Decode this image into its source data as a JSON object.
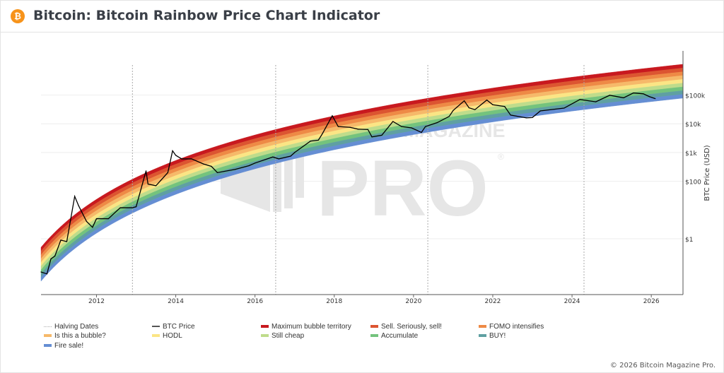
{
  "header": {
    "title": "Bitcoin: Bitcoin Rainbow Price Chart Indicator",
    "icon": "bitcoin-icon",
    "icon_glyph": "₿"
  },
  "watermark": {
    "line1": "BITCOIN MAGAZINE",
    "line2": "PRO",
    "mark": "®"
  },
  "copyright": "© 2026 Bitcoin Magazine Pro.",
  "chart_data": {
    "type": "line",
    "title": "",
    "xlabel": "",
    "ylabel": "BTC Price (USD)",
    "y_scale": "log",
    "xlim": [
      2010.6,
      2026.8
    ],
    "ylim": [
      0.011,
      3500000
    ],
    "grid": "horizontal",
    "x_ticks": [
      "2012",
      "2014",
      "2016",
      "2018",
      "2020",
      "2022",
      "2024",
      "2026"
    ],
    "y_ticks": [
      {
        "value": 1,
        "label": "$1"
      },
      {
        "value": 100,
        "label": "$100"
      },
      {
        "value": 1000,
        "label": "$1k"
      },
      {
        "value": 10000,
        "label": "$10k"
      },
      {
        "value": 100000,
        "label": "$100k"
      }
    ],
    "halving_dates": [
      "2012-11-28",
      "2016-07-09",
      "2020-05-11",
      "2024-04-20"
    ],
    "bands": [
      {
        "name": "Maximum bubble territory",
        "color": "#c8191f"
      },
      {
        "name": "Sell. Seriously, sell!",
        "color": "#dc5531"
      },
      {
        "name": "FOMO intensifies",
        "color": "#ee8a46"
      },
      {
        "name": "Is this a bubble?",
        "color": "#f6b96a"
      },
      {
        "name": "HODL",
        "color": "#fbe585"
      },
      {
        "name": "Still cheap",
        "color": "#bfdc8b"
      },
      {
        "name": "Accumulate",
        "color": "#74c37d"
      },
      {
        "name": "BUY!",
        "color": "#5fa0a2"
      },
      {
        "name": "Fire sale!",
        "color": "#658ed3"
      }
    ],
    "series": [
      {
        "name": "BTC Price",
        "color": "#000000",
        "x": [
          2010.6,
          2010.75,
          2010.85,
          2010.95,
          2011.1,
          2011.25,
          2011.45,
          2011.55,
          2011.75,
          2011.9,
          2012.0,
          2012.3,
          2012.6,
          2012.9,
          2013.0,
          2013.25,
          2013.3,
          2013.5,
          2013.8,
          2013.92,
          2014.0,
          2014.15,
          2014.4,
          2014.7,
          2014.9,
          2015.05,
          2015.5,
          2015.85,
          2016.0,
          2016.45,
          2016.6,
          2016.9,
          2017.0,
          2017.4,
          2017.6,
          2017.7,
          2017.95,
          2018.1,
          2018.4,
          2018.6,
          2018.85,
          2018.95,
          2019.2,
          2019.48,
          2019.7,
          2019.95,
          2020.2,
          2020.3,
          2020.6,
          2020.9,
          2021.0,
          2021.28,
          2021.4,
          2021.55,
          2021.85,
          2022.0,
          2022.3,
          2022.45,
          2022.85,
          2023.0,
          2023.2,
          2023.8,
          2024.2,
          2024.6,
          2024.95,
          2025.3,
          2025.55,
          2025.8,
          2025.95,
          2026.1
        ],
        "values": [
          0.07,
          0.06,
          0.2,
          0.25,
          0.9,
          0.8,
          30,
          14,
          4,
          2.5,
          5,
          5,
          12,
          12,
          13,
          230,
          80,
          70,
          200,
          1150,
          800,
          600,
          600,
          400,
          330,
          200,
          260,
          350,
          430,
          700,
          600,
          750,
          1000,
          2500,
          2700,
          4500,
          19000,
          8000,
          7500,
          6500,
          6300,
          3500,
          4000,
          12000,
          8000,
          7200,
          5000,
          8000,
          11000,
          18000,
          29000,
          63000,
          36000,
          31000,
          67000,
          46000,
          40000,
          20000,
          16000,
          16500,
          28000,
          35000,
          70000,
          58000,
          98000,
          80000,
          118000,
          110000,
          88000,
          75000
        ]
      }
    ],
    "legend": {
      "position": "bottom",
      "entries": [
        "Halving Dates",
        "BTC Price",
        "Maximum bubble territory",
        "Sell. Seriously, sell!",
        "FOMO intensifies",
        "Is this a bubble?",
        "HODL",
        "Still cheap",
        "Accumulate",
        "BUY!",
        "Fire sale!"
      ]
    }
  }
}
